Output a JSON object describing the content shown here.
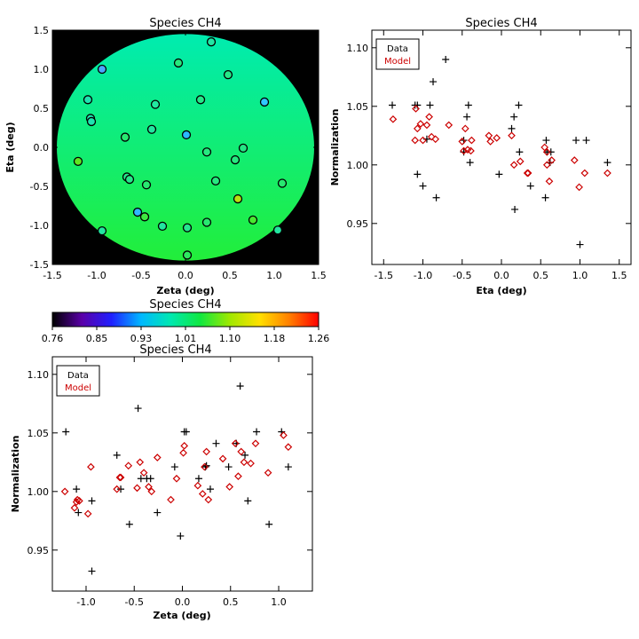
{
  "chart_data": [
    {
      "type": "heatmap",
      "title": "Species CH4",
      "xlabel": "Zeta (deg)",
      "ylabel": "Eta (deg)",
      "xlim": [
        -1.5,
        1.5
      ],
      "ylim": [
        -1.5,
        1.5
      ],
      "xticks": [
        "-1.5",
        "-1.0",
        "-0.5",
        "0.0",
        "0.5",
        "1.0",
        "1.5"
      ],
      "yticks": [
        "-1.5",
        "-1.0",
        "-0.5",
        "0.0",
        "0.5",
        "1.0",
        "1.5"
      ],
      "disk_radius_deg": 1.45,
      "background_color": "#000000",
      "map_colors": {
        "top": "#00ecb0",
        "bottom": "#22ee3a"
      },
      "points": [
        {
          "x": -0.94,
          "y": 1.0,
          "color": "#4aa8ff"
        },
        {
          "x": -0.08,
          "y": 1.08,
          "color": "#27e87c"
        },
        {
          "x": 0.29,
          "y": 1.35,
          "color": "#22e6a4"
        },
        {
          "x": 0.48,
          "y": 0.93,
          "color": "#26e888"
        },
        {
          "x": -1.1,
          "y": 0.61,
          "color": "#1fe3b0"
        },
        {
          "x": -1.07,
          "y": 0.37,
          "color": "#1fe3b0"
        },
        {
          "x": -1.06,
          "y": 0.33,
          "color": "#1fe3b0"
        },
        {
          "x": -0.34,
          "y": 0.55,
          "color": "#22e8a0"
        },
        {
          "x": 0.17,
          "y": 0.61,
          "color": "#25e888"
        },
        {
          "x": 0.89,
          "y": 0.58,
          "color": "#30c8ff"
        },
        {
          "x": -0.68,
          "y": 0.13,
          "color": "#28e870"
        },
        {
          "x": -0.38,
          "y": 0.23,
          "color": "#22e6a0"
        },
        {
          "x": 0.01,
          "y": 0.16,
          "color": "#2ab8ff"
        },
        {
          "x": 0.65,
          "y": -0.01,
          "color": "#25e685"
        },
        {
          "x": -1.21,
          "y": -0.18,
          "color": "#5fe620"
        },
        {
          "x": 0.24,
          "y": -0.06,
          "color": "#27e880"
        },
        {
          "x": 0.56,
          "y": -0.16,
          "color": "#27e880"
        },
        {
          "x": -0.66,
          "y": -0.38,
          "color": "#26e68a"
        },
        {
          "x": -0.63,
          "y": -0.41,
          "color": "#26e68a"
        },
        {
          "x": -0.44,
          "y": -0.48,
          "color": "#28e870"
        },
        {
          "x": 0.34,
          "y": -0.43,
          "color": "#27e880"
        },
        {
          "x": 1.09,
          "y": -0.46,
          "color": "#28e870"
        },
        {
          "x": 0.59,
          "y": -0.66,
          "color": "#b8e010"
        },
        {
          "x": -0.54,
          "y": -0.83,
          "color": "#30b8ff"
        },
        {
          "x": -0.46,
          "y": -0.89,
          "color": "#3fe840"
        },
        {
          "x": -0.26,
          "y": -1.01,
          "color": "#22e6a0"
        },
        {
          "x": 0.02,
          "y": -1.03,
          "color": "#26e690"
        },
        {
          "x": 0.24,
          "y": -0.96,
          "color": "#28e870"
        },
        {
          "x": 0.76,
          "y": -0.93,
          "color": "#48e830"
        },
        {
          "x": -0.94,
          "y": -1.07,
          "color": "#22e6a0"
        },
        {
          "x": 1.04,
          "y": -1.06,
          "color": "#22e6a0"
        },
        {
          "x": 0.02,
          "y": -1.38,
          "color": "#2ee860"
        }
      ]
    },
    {
      "type": "colorbar",
      "title": "Species CH4",
      "ticks": [
        "0.76",
        "0.85",
        "0.93",
        "1.01",
        "1.10",
        "1.18",
        "1.26"
      ],
      "range": [
        0.76,
        1.26
      ],
      "stops": [
        "#000000",
        "#5a00a8",
        "#2020ff",
        "#00b8ff",
        "#00e8b0",
        "#10e840",
        "#a0e800",
        "#ffe000",
        "#ff8000",
        "#ff0000"
      ]
    },
    {
      "type": "scatter",
      "title": "Species CH4",
      "xlabel": "Eta (deg)",
      "ylabel": "Normalization",
      "xlim": [
        -1.65,
        1.65
      ],
      "ylim": [
        0.915,
        1.115
      ],
      "xticks": [
        "-1.5",
        "-1.0",
        "-0.5",
        "0.0",
        "0.5",
        "1.0",
        "1.5"
      ],
      "yticks": [
        "0.95",
        "1.00",
        "1.05",
        "1.10"
      ],
      "legend": {
        "position": "top-left",
        "entries": [
          "Data",
          "Model"
        ]
      },
      "series": [
        {
          "name": "Data",
          "marker": "plus",
          "color": "#000000",
          "points": [
            [
              -1.39,
              1.051
            ],
            [
              -1.1,
              1.051
            ],
            [
              -1.07,
              1.051
            ],
            [
              -1.07,
              0.992
            ],
            [
              -1.0,
              0.982
            ],
            [
              -0.95,
              1.022
            ],
            [
              -0.91,
              1.051
            ],
            [
              -0.87,
              1.071
            ],
            [
              -0.83,
              0.972
            ],
            [
              -0.71,
              1.09
            ],
            [
              -0.48,
              1.011
            ],
            [
              -0.44,
              1.041
            ],
            [
              -0.42,
              1.051
            ],
            [
              -0.4,
              1.002
            ],
            [
              -0.48,
              1.021
            ],
            [
              -0.03,
              0.992
            ],
            [
              0.13,
              1.031
            ],
            [
              0.16,
              1.041
            ],
            [
              0.22,
              1.051
            ],
            [
              0.17,
              0.962
            ],
            [
              0.23,
              1.011
            ],
            [
              0.37,
              0.982
            ],
            [
              0.57,
              1.021
            ],
            [
              0.56,
              0.972
            ],
            [
              0.58,
              1.011
            ],
            [
              0.62,
              1.002
            ],
            [
              0.63,
              1.011
            ],
            [
              0.95,
              1.021
            ],
            [
              1.0,
              0.932
            ],
            [
              1.08,
              1.021
            ],
            [
              1.35,
              1.002
            ]
          ]
        },
        {
          "name": "Model",
          "marker": "diamond",
          "color": "#cc0000",
          "points": [
            [
              -1.38,
              1.039
            ],
            [
              -1.1,
              1.021
            ],
            [
              -1.09,
              1.048
            ],
            [
              -1.07,
              1.031
            ],
            [
              -1.03,
              1.035
            ],
            [
              -1.0,
              1.021
            ],
            [
              -0.95,
              1.034
            ],
            [
              -0.92,
              1.041
            ],
            [
              -0.89,
              1.024
            ],
            [
              -0.84,
              1.022
            ],
            [
              -0.67,
              1.034
            ],
            [
              -0.5,
              1.02
            ],
            [
              -0.48,
              1.012
            ],
            [
              -0.46,
              1.031
            ],
            [
              -0.43,
              1.013
            ],
            [
              -0.38,
              1.021
            ],
            [
              -0.39,
              1.012
            ],
            [
              -0.16,
              1.025
            ],
            [
              -0.14,
              1.02
            ],
            [
              -0.06,
              1.023
            ],
            [
              0.16,
              1.0
            ],
            [
              0.13,
              1.025
            ],
            [
              0.24,
              1.003
            ],
            [
              0.33,
              0.993
            ],
            [
              0.34,
              0.993
            ],
            [
              0.55,
              1.015
            ],
            [
              0.58,
              1.011
            ],
            [
              0.61,
              0.986
            ],
            [
              0.64,
              1.004
            ],
            [
              0.58,
              1.0
            ],
            [
              0.93,
              1.004
            ],
            [
              0.99,
              0.981
            ],
            [
              1.06,
              0.993
            ],
            [
              1.35,
              0.993
            ]
          ]
        }
      ]
    },
    {
      "type": "scatter",
      "title": "Species CH4",
      "xlabel": "Zeta (deg)",
      "ylabel": "Normalization",
      "xlim": [
        -1.35,
        1.35
      ],
      "ylim": [
        0.915,
        1.115
      ],
      "xticks": [
        "-1.0",
        "-0.5",
        "0.0",
        "0.5",
        "1.0"
      ],
      "yticks": [
        "0.95",
        "1.00",
        "1.05",
        "1.10"
      ],
      "legend": {
        "position": "top-left",
        "entries": [
          "Data",
          "Model"
        ]
      },
      "series": [
        {
          "name": "Data",
          "marker": "plus",
          "color": "#000000",
          "points": [
            [
              -1.21,
              1.051
            ],
            [
              -1.1,
              1.002
            ],
            [
              -1.08,
              0.982
            ],
            [
              -0.94,
              0.992
            ],
            [
              -0.94,
              0.932
            ],
            [
              -0.68,
              1.031
            ],
            [
              -0.64,
              1.002
            ],
            [
              -0.55,
              0.972
            ],
            [
              -0.46,
              1.071
            ],
            [
              -0.43,
              1.011
            ],
            [
              -0.37,
              1.011
            ],
            [
              -0.33,
              1.011
            ],
            [
              -0.26,
              0.982
            ],
            [
              -0.08,
              1.021
            ],
            [
              -0.02,
              0.962
            ],
            [
              0.02,
              1.051
            ],
            [
              0.04,
              1.051
            ],
            [
              0.17,
              1.011
            ],
            [
              0.24,
              1.021
            ],
            [
              0.25,
              1.022
            ],
            [
              0.29,
              1.002
            ],
            [
              0.35,
              1.041
            ],
            [
              0.48,
              1.021
            ],
            [
              0.56,
              1.041
            ],
            [
              0.6,
              1.09
            ],
            [
              0.65,
              1.031
            ],
            [
              0.68,
              0.992
            ],
            [
              0.77,
              1.051
            ],
            [
              0.9,
              0.972
            ],
            [
              1.03,
              1.051
            ],
            [
              1.1,
              1.021
            ]
          ]
        },
        {
          "name": "Model",
          "marker": "diamond",
          "color": "#cc0000",
          "points": [
            [
              -1.22,
              1.0
            ],
            [
              -1.12,
              0.986
            ],
            [
              -1.1,
              0.991
            ],
            [
              -1.09,
              0.993
            ],
            [
              -1.07,
              0.992
            ],
            [
              -0.98,
              0.981
            ],
            [
              -0.95,
              1.021
            ],
            [
              -0.68,
              1.002
            ],
            [
              -0.65,
              1.012
            ],
            [
              -0.64,
              1.012
            ],
            [
              -0.56,
              1.022
            ],
            [
              -0.47,
              1.003
            ],
            [
              -0.44,
              1.025
            ],
            [
              -0.4,
              1.016
            ],
            [
              -0.35,
              1.004
            ],
            [
              -0.32,
              1.0
            ],
            [
              -0.26,
              1.029
            ],
            [
              -0.12,
              0.993
            ],
            [
              -0.06,
              1.011
            ],
            [
              0.01,
              1.033
            ],
            [
              0.02,
              1.039
            ],
            [
              0.16,
              1.005
            ],
            [
              0.21,
              0.998
            ],
            [
              0.23,
              1.021
            ],
            [
              0.25,
              1.034
            ],
            [
              0.27,
              0.993
            ],
            [
              0.42,
              1.028
            ],
            [
              0.49,
              1.004
            ],
            [
              0.55,
              1.041
            ],
            [
              0.58,
              1.013
            ],
            [
              0.61,
              1.034
            ],
            [
              0.64,
              1.025
            ],
            [
              0.71,
              1.024
            ],
            [
              0.76,
              1.041
            ],
            [
              0.89,
              1.016
            ],
            [
              1.05,
              1.048
            ],
            [
              1.1,
              1.038
            ]
          ]
        }
      ]
    }
  ]
}
